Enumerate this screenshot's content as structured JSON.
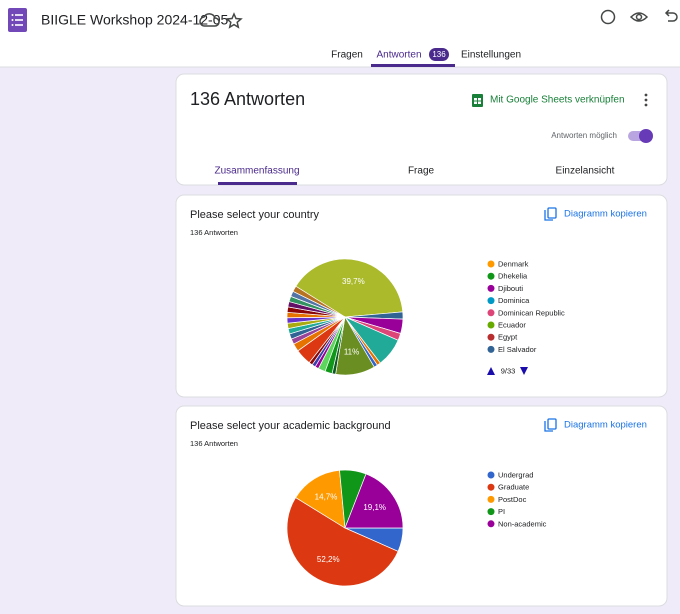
{
  "header": {
    "title": "BIIGLE Workshop 2024-12-05",
    "tabs": [
      "Fragen",
      "Antworten",
      "Einstellungen"
    ],
    "badge": "136"
  },
  "summary": {
    "title": "136 Antworten",
    "sheets_link": "Mit Google Sheets verknüpfen",
    "accepting": "Antworten möglich",
    "tabs": [
      "Zusammenfassung",
      "Frage",
      "Einzelansicht"
    ]
  },
  "copy_button": "Diagramm kopieren",
  "chart_data": [
    {
      "type": "pie",
      "title": "Please select your country",
      "subtitle": "136 Antworten",
      "values": [
        39.7,
        2,
        4,
        2,
        8,
        1,
        1,
        11,
        1,
        2,
        2,
        1,
        1,
        1,
        4.5,
        2.2,
        1.5,
        1.5,
        1.5,
        1.5,
        1.5,
        1.5,
        1.5,
        1.5,
        1.5,
        1.5,
        1.6
      ],
      "value_labels": [
        "39,7%",
        null,
        null,
        null,
        null,
        null,
        null,
        "11%",
        null,
        null,
        null,
        null,
        null,
        null,
        null,
        null,
        null,
        null,
        null,
        null,
        null,
        null,
        null,
        null,
        null,
        null,
        null
      ],
      "colors": [
        "#aaba2a",
        "#316395",
        "#990099",
        "#dd4477",
        "#22aa99",
        "#e67300",
        "#3366cc",
        "#6b8e23",
        "#0c5922",
        "#109618",
        "#5cd65c",
        "#990099",
        "#3b3eac",
        "#8b0707",
        "#dc3912",
        "#e67300",
        "#994499",
        "#316395",
        "#22aa99",
        "#aaaa11",
        "#6633cc",
        "#e67300",
        "#8b0707",
        "#651067",
        "#329262",
        "#5574a6",
        "#b77322"
      ],
      "legend": [
        {
          "name": "Denmark",
          "color": "#ff9900"
        },
        {
          "name": "Dhekelia",
          "color": "#109618"
        },
        {
          "name": "Djibouti",
          "color": "#990099"
        },
        {
          "name": "Dominica",
          "color": "#0099c6"
        },
        {
          "name": "Dominican Republic",
          "color": "#dd4477"
        },
        {
          "name": "Ecuador",
          "color": "#66aa00"
        },
        {
          "name": "Egypt",
          "color": "#b82e2e"
        },
        {
          "name": "El Salvador",
          "color": "#316395"
        }
      ],
      "legend_page": "9/33"
    },
    {
      "type": "pie",
      "title": "Please select your academic background",
      "subtitle": "136 Antworten",
      "values": [
        6.6,
        52.2,
        14.7,
        7.4,
        19.1
      ],
      "value_labels": [
        null,
        "52,2%",
        "14,7%",
        null,
        "19,1%"
      ],
      "colors": [
        "#3366cc",
        "#dc3912",
        "#ff9900",
        "#109618",
        "#990099"
      ],
      "legend": [
        {
          "name": "Undergrad",
          "color": "#3366cc"
        },
        {
          "name": "Graduate",
          "color": "#dc3912"
        },
        {
          "name": "PostDoc",
          "color": "#ff9900"
        },
        {
          "name": "PI",
          "color": "#109618"
        },
        {
          "name": "Non-academic",
          "color": "#990099"
        }
      ]
    }
  ]
}
